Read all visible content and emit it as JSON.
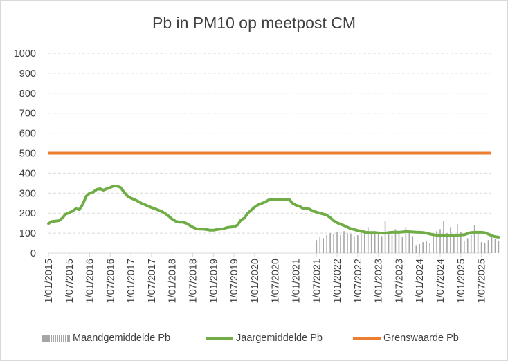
{
  "chart_data": {
    "type": "line",
    "title": "Pb in PM10 op meetpost CM",
    "xlabel": "",
    "ylabel": "",
    "ylim": [
      0,
      1000
    ],
    "y_ticks": [
      "0",
      "100",
      "200",
      "300",
      "400",
      "500",
      "600",
      "700",
      "800",
      "900",
      "1000"
    ],
    "x_tick_labels": [
      "1/01/2015",
      "1/07/2015",
      "1/01/2016",
      "1/07/2016",
      "1/01/2017",
      "1/07/2017",
      "1/01/2018",
      "1/07/2018",
      "1/01/2019",
      "1/07/2019",
      "1/01/2020",
      "1/07/2020",
      "1/01/2021",
      "1/07/2021",
      "1/01/2022",
      "1/07/2022",
      "1/01/2023",
      "1/07/2023",
      "1/01/2024",
      "1/07/2024",
      "1/01/2025",
      "1/07/2025"
    ],
    "grid": "horizontal dashed",
    "legend_position": "bottom",
    "series": [
      {
        "name": "Jaargemiddelde Pb",
        "type": "line",
        "color": "#70ad47",
        "x_months": [
          0,
          1,
          2,
          3,
          4,
          5,
          6,
          7,
          8,
          9,
          10,
          11,
          12,
          13,
          14,
          15,
          16,
          17,
          18,
          19,
          20,
          21,
          22,
          23,
          24,
          25,
          26,
          27,
          28,
          29,
          30,
          31,
          32,
          33,
          34,
          35,
          36,
          37,
          38,
          39,
          40,
          41,
          42,
          43,
          44,
          45,
          46,
          47,
          48,
          49,
          50,
          51,
          52,
          53,
          54,
          55,
          56,
          57,
          58,
          59,
          60,
          61,
          62,
          63,
          64,
          65,
          66,
          67,
          68,
          69,
          70,
          71,
          72,
          73,
          74,
          75,
          76,
          77,
          78,
          79,
          80,
          81,
          82,
          83,
          84,
          85,
          86,
          87,
          88,
          89,
          90,
          91,
          92,
          93,
          94,
          95,
          96,
          97,
          98,
          99,
          100,
          101,
          102,
          103,
          104,
          105,
          106,
          107,
          108,
          109,
          110,
          111,
          112,
          113,
          114,
          115,
          116,
          117,
          118,
          119,
          120,
          121,
          122,
          123,
          124,
          125,
          126,
          127,
          128,
          129,
          130,
          131
        ],
        "values": [
          148,
          158,
          160,
          162,
          175,
          195,
          202,
          210,
          222,
          218,
          245,
          285,
          300,
          305,
          318,
          322,
          315,
          322,
          328,
          336,
          335,
          328,
          305,
          285,
          275,
          268,
          260,
          250,
          243,
          235,
          228,
          222,
          215,
          208,
          198,
          185,
          170,
          160,
          155,
          155,
          150,
          140,
          130,
          122,
          120,
          120,
          118,
          115,
          115,
          118,
          120,
          122,
          128,
          130,
          132,
          140,
          165,
          175,
          200,
          215,
          230,
          242,
          248,
          255,
          265,
          268,
          270,
          270,
          270,
          270,
          270,
          250,
          240,
          235,
          225,
          225,
          220,
          210,
          205,
          200,
          195,
          190,
          178,
          162,
          152,
          145,
          138,
          130,
          122,
          118,
          113,
          110,
          105,
          103,
          103,
          103,
          101,
          100,
          100,
          102,
          104,
          105,
          104,
          106,
          108,
          107,
          106,
          105,
          104,
          103,
          100,
          96,
          92,
          90,
          89,
          88,
          88,
          88,
          89,
          90,
          91,
          92,
          98,
          103,
          104,
          104,
          104,
          102,
          95,
          88,
          82,
          80
        ]
      },
      {
        "name": "Grenswaarde Pb",
        "type": "line",
        "color": "#ed7d31",
        "values": [
          500
        ]
      },
      {
        "name": "Maandgemiddelde Pb",
        "type": "bar",
        "color": "#a6a6a6",
        "x_months": [
          78,
          79,
          80,
          81,
          82,
          83,
          84,
          85,
          86,
          87,
          88,
          89,
          90,
          91,
          92,
          93,
          94,
          95,
          96,
          97,
          98,
          99,
          100,
          101,
          102,
          103,
          104,
          105,
          106,
          107,
          108,
          109,
          110,
          111,
          112,
          113,
          114,
          115,
          116,
          117,
          118,
          119,
          120,
          121,
          122,
          123,
          124,
          125,
          126,
          127,
          128,
          129,
          130,
          131
        ],
        "values": [
          65,
          80,
          75,
          90,
          100,
          95,
          105,
          90,
          110,
          100,
          95,
          85,
          90,
          105,
          115,
          130,
          95,
          110,
          100,
          85,
          160,
          110,
          90,
          120,
          95,
          80,
          130,
          100,
          85,
          40,
          45,
          55,
          60,
          50,
          95,
          110,
          120,
          160,
          100,
          130,
          90,
          145,
          105,
          60,
          75,
          90,
          140,
          105,
          55,
          50,
          65,
          80,
          70,
          60
        ]
      }
    ]
  },
  "legend": {
    "monthly_label": "Maandgemiddelde Pb",
    "annual_label": "Jaargemiddelde Pb",
    "limit_label": "Grenswaarde Pb"
  },
  "colors": {
    "monthly": "#a6a6a6",
    "annual": "#70ad47",
    "limit": "#ed7d31",
    "grid": "#d9d9d9",
    "text": "#404040"
  }
}
